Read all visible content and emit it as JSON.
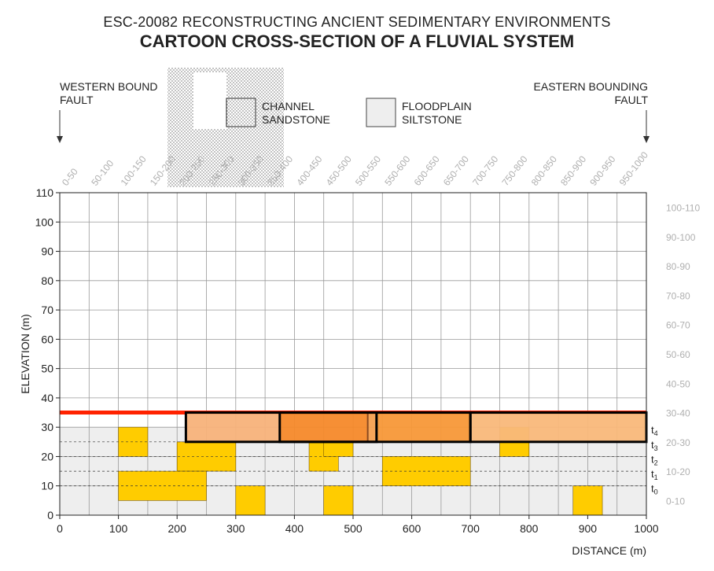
{
  "header": {
    "title": "ESC-20082 RECONSTRUCTING ANCIENT SEDIMENTARY ENVIRONMENTS",
    "subtitle": "CARTOON CROSS-SECTION OF A FLUVIAL SYSTEM"
  },
  "labels": {
    "west_fault_line1": "WESTERN BOUND",
    "west_fault_line2": "FAULT",
    "east_fault_line1": "EASTERN BOUNDING",
    "east_fault_line2": "FAULT"
  },
  "legend": {
    "channel_line1": "CHANNEL",
    "channel_line2": "SANDSTONE",
    "floodplain_line1": "FLOODPLAIN",
    "floodplain_line2": "SILTSTONE"
  },
  "chart_data": {
    "type": "cross-section",
    "xlabel": "DISTANCE (m)",
    "ylabel": "ELEVATION (m)",
    "xlim": [
      0,
      1000
    ],
    "ylim": [
      0,
      110
    ],
    "x_ticks": [
      0,
      100,
      200,
      300,
      400,
      500,
      600,
      700,
      800,
      900,
      1000
    ],
    "y_ticks": [
      0,
      10,
      20,
      30,
      40,
      50,
      60,
      70,
      80,
      90,
      100,
      110
    ],
    "x_bins": [
      "0-50",
      "50-100",
      "100-150",
      "150-200",
      "200-250",
      "250-300",
      "300-350",
      "350-400",
      "400-450",
      "450-500",
      "500-550",
      "550-600",
      "600-650",
      "650-700",
      "700-750",
      "750-800",
      "800-850",
      "850-900",
      "900-950",
      "950-1000"
    ],
    "y_bins": [
      "0-10",
      "10-20",
      "20-30",
      "30-40",
      "40-50",
      "50-60",
      "60-70",
      "70-80",
      "80-90",
      "90-100",
      "100-110"
    ],
    "grid": true,
    "floodplain_top": 30,
    "time_lines": [
      {
        "label": "t",
        "sub": "4",
        "y": 30
      },
      {
        "label": "t",
        "sub": "3",
        "y": 25
      },
      {
        "label": "t",
        "sub": "2",
        "y": 20
      },
      {
        "label": "t",
        "sub": "1",
        "y": 15
      },
      {
        "label": "t",
        "sub": "0",
        "y": 10
      }
    ],
    "sandstone_bodies": [
      {
        "x0": 100,
        "x1": 150,
        "y0": 20,
        "y1": 30
      },
      {
        "x0": 200,
        "x1": 300,
        "y0": 15,
        "y1": 25
      },
      {
        "x0": 100,
        "x1": 250,
        "y0": 5,
        "y1": 15
      },
      {
        "x0": 300,
        "x1": 350,
        "y0": 0,
        "y1": 10
      },
      {
        "x0": 425,
        "x1": 475,
        "y0": 15,
        "y1": 25
      },
      {
        "x0": 450,
        "x1": 500,
        "y0": 20,
        "y1": 25
      },
      {
        "x0": 450,
        "x1": 500,
        "y0": 0,
        "y1": 10
      },
      {
        "x0": 550,
        "x1": 700,
        "y0": 10,
        "y1": 20
      },
      {
        "x0": 750,
        "x1": 800,
        "y0": 20,
        "y1": 30
      },
      {
        "x0": 875,
        "x1": 925,
        "y0": 0,
        "y1": 10
      }
    ],
    "surface_line": {
      "x0": 0,
      "x1": 1000,
      "y": 35,
      "color": "#ff2200"
    },
    "active_channel_belt": {
      "x0": 215,
      "x1": 1000,
      "y0": 25,
      "y1": 35
    },
    "channel_segments": [
      {
        "x0": 215,
        "x1": 375,
        "color": "#f7b27a"
      },
      {
        "x0": 375,
        "x1": 525,
        "color": "#f5892a"
      },
      {
        "x0": 525,
        "x1": 540,
        "color": "#f5a050"
      },
      {
        "x0": 540,
        "x1": 700,
        "color": "#f79838"
      },
      {
        "x0": 700,
        "x1": 1000,
        "color": "#f9b87a"
      }
    ],
    "channel_dividers": [
      375,
      525
    ],
    "bold_boxes": [
      {
        "x0": 215,
        "x1": 540
      },
      {
        "x0": 375,
        "x1": 700
      },
      {
        "x0": 700,
        "x1": 1000
      }
    ],
    "colors": {
      "floodplain": "#eeeeee",
      "sandstone": "#ffcc00",
      "grid": "#999999",
      "bin_labels": "#b0b0b0"
    }
  }
}
